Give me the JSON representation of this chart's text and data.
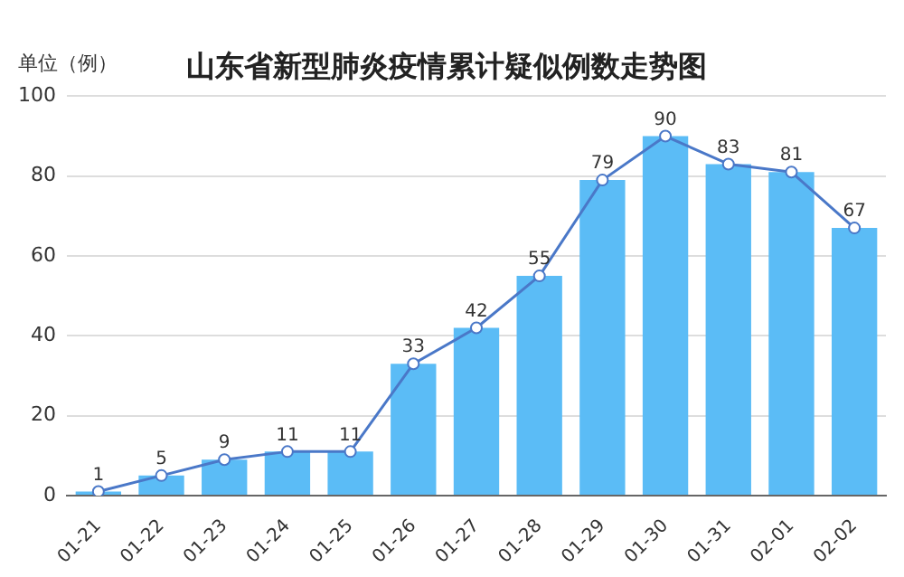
{
  "chart_data": {
    "type": "bar",
    "title": "山东省新型肺炎疫情累计疑似例数走势图",
    "ylabel": "单位（例）",
    "categories": [
      "01-21",
      "01-22",
      "01-23",
      "01-24",
      "01-25",
      "01-26",
      "01-27",
      "01-28",
      "01-29",
      "01-30",
      "01-31",
      "02-01",
      "02-02"
    ],
    "series": [
      {
        "color": "#5bbcf6",
        "values": [
          1,
          5,
          9,
          11,
          11,
          33,
          42,
          55,
          79,
          90,
          83,
          81,
          67
        ]
      },
      {
        "type": "line",
        "color": "#4a78c8",
        "values": [
          1,
          5,
          9,
          11,
          11,
          33,
          42,
          55,
          79,
          90,
          83,
          81,
          67
        ],
        "value_labels": [
          "1",
          "5",
          "9",
          "11",
          "11",
          "33",
          "42",
          "55",
          "79",
          "90",
          "83",
          "81",
          "67"
        ]
      }
    ],
    "ylim": [
      0,
      100
    ],
    "yticks": [
      0,
      20,
      40,
      60,
      80,
      100
    ],
    "grid": "y",
    "marker": "circle",
    "legend": false
  }
}
